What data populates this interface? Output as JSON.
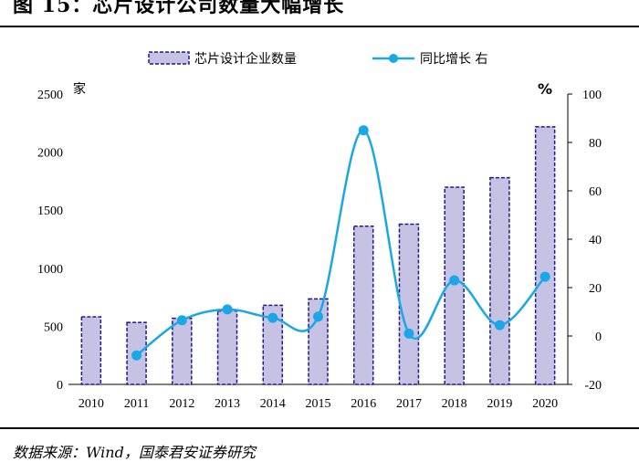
{
  "title": "图 15：芯片设计公司数量大幅增长",
  "source": "数据来源：Wind，国泰君安证券研究",
  "chart_data": {
    "type": "bar+line",
    "categories": [
      "2010",
      "2011",
      "2012",
      "2013",
      "2014",
      "2015",
      "2016",
      "2017",
      "2018",
      "2019",
      "2020"
    ],
    "series": [
      {
        "name": "芯片设计企业数量",
        "type": "bar",
        "axis": "left",
        "values": [
          582,
          534,
          569,
          632,
          681,
          736,
          1362,
          1380,
          1698,
          1780,
          2218
        ]
      },
      {
        "name": "同比增长 右",
        "type": "line",
        "axis": "right",
        "values": [
          null,
          -8,
          6.5,
          11,
          7.5,
          8,
          85,
          1,
          23,
          4.5,
          24.5
        ]
      }
    ],
    "y_left": {
      "label": "家",
      "ylim": [
        0,
        2500
      ],
      "ticks": [
        "0",
        "500",
        "1000",
        "1500",
        "2000",
        "2500"
      ]
    },
    "y_right": {
      "label": "%",
      "ylim": [
        -20,
        100
      ],
      "ticks": [
        "-20",
        "0",
        "20",
        "40",
        "60",
        "80",
        "100"
      ]
    },
    "legend_position": "top-center",
    "grid": false,
    "colors": {
      "bar_fill": "#c5c2e4",
      "bar_border": "#1f1a8c",
      "line": "#1aa7e8"
    }
  }
}
